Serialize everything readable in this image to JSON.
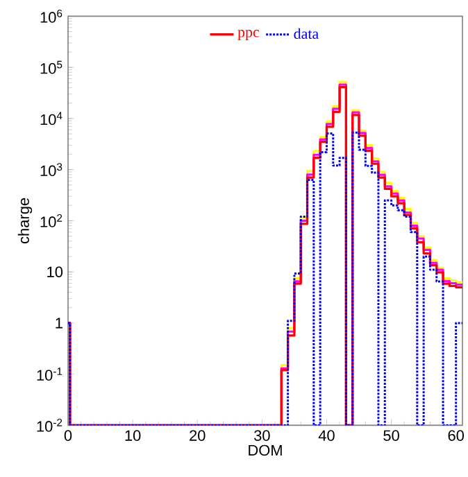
{
  "chart_data": {
    "type": "histogram",
    "xlabel": "DOM",
    "ylabel": "charge",
    "log": "y",
    "legend": "top",
    "grid": false,
    "xlim": [
      0,
      61
    ],
    "ylim": [
      0.01,
      1000000
    ],
    "xticks": [
      0,
      10,
      20,
      30,
      40,
      50,
      60
    ],
    "yticks": [
      {
        "value": 0.01,
        "label": "10$^{-2}$"
      },
      {
        "value": 0.1,
        "label": "10$^{-1}$"
      },
      1,
      10,
      {
        "value": 100,
        "label": "10$^{2}$"
      },
      {
        "value": 1000,
        "label": "10$^{3}$"
      },
      {
        "value": 10000,
        "label": "10$^{4}$"
      },
      {
        "value": 100000,
        "label": "10$^{5}$"
      },
      {
        "value": 1000000,
        "label": "10$^{6}$"
      }
    ],
    "bins": [
      0,
      0.3,
      1,
      2,
      3,
      4,
      5,
      6,
      7,
      8,
      9,
      10,
      11,
      12,
      13,
      14,
      15,
      16,
      17,
      18,
      19,
      20,
      21,
      22,
      23,
      24,
      25,
      26,
      27,
      28,
      29,
      30,
      31,
      32,
      33,
      34,
      35,
      36,
      37,
      38,
      39,
      40,
      41,
      42,
      43,
      44,
      45,
      46,
      47,
      48,
      49,
      50,
      51,
      52,
      53,
      54,
      55,
      56,
      57,
      58,
      59,
      60,
      61
    ],
    "series": [
      {
        "color": "#ffff00",
        "line_style": "solid",
        "values": [
          1,
          0.01,
          0.01,
          0.01,
          0.01,
          0.01,
          0.01,
          0.01,
          0.01,
          0.01,
          0.01,
          0.01,
          0.01,
          0.01,
          0.01,
          0.01,
          0.01,
          0.01,
          0.01,
          0.01,
          0.01,
          0.01,
          0.01,
          0.01,
          0.01,
          0.01,
          0.01,
          0.01,
          0.01,
          0.01,
          0.01,
          0.01,
          0.01,
          0.01,
          0.15,
          0.8,
          7.5,
          115,
          950,
          2300,
          4300,
          8800,
          17500,
          52000,
          0.01,
          14500,
          5800,
          3000,
          1650,
          900,
          550,
          380,
          280,
          170,
          90,
          50,
          30,
          17,
          12,
          7.5,
          6.8,
          6.3
        ]
      },
      {
        "color": "#ff00ff",
        "line_style": "solid",
        "values": [
          1,
          0.01,
          0.01,
          0.01,
          0.01,
          0.01,
          0.01,
          0.01,
          0.01,
          0.01,
          0.01,
          0.01,
          0.01,
          0.01,
          0.01,
          0.01,
          0.01,
          0.01,
          0.01,
          0.01,
          0.01,
          0.01,
          0.01,
          0.01,
          0.01,
          0.01,
          0.01,
          0.01,
          0.01,
          0.01,
          0.01,
          0.01,
          0.01,
          0.01,
          0.13,
          0.68,
          6.5,
          100,
          800,
          1950,
          3900,
          7800,
          15500,
          46000,
          0.01,
          13200,
          5200,
          2650,
          1450,
          790,
          470,
          340,
          250,
          145,
          80,
          45,
          27,
          15,
          11,
          6.6,
          6.0,
          5.6
        ]
      },
      {
        "name": "ppc",
        "color": "#ff0000",
        "line_style": "solid",
        "values": [
          1,
          0.01,
          0.01,
          0.01,
          0.01,
          0.01,
          0.01,
          0.01,
          0.01,
          0.01,
          0.01,
          0.01,
          0.01,
          0.01,
          0.01,
          0.01,
          0.01,
          0.01,
          0.01,
          0.01,
          0.01,
          0.01,
          0.01,
          0.01,
          0.01,
          0.01,
          0.01,
          0.01,
          0.01,
          0.01,
          0.01,
          0.01,
          0.01,
          0.01,
          0.12,
          0.57,
          5.9,
          87,
          700,
          1700,
          3500,
          6900,
          13500,
          41000,
          0.01,
          11700,
          4600,
          2350,
          1300,
          700,
          420,
          300,
          220,
          130,
          71,
          38,
          23,
          13.5,
          9.8,
          5.9,
          5.3,
          5
        ]
      },
      {
        "name": "data",
        "color": "#0000ff",
        "line_style": "dotted",
        "values": [
          1,
          0.01,
          0.01,
          0.01,
          0.01,
          0.01,
          0.01,
          0.01,
          0.01,
          0.01,
          0.01,
          0.01,
          0.01,
          0.01,
          0.01,
          0.01,
          0.01,
          0.01,
          0.01,
          0.01,
          0.01,
          0.01,
          0.01,
          0.01,
          0.01,
          0.01,
          0.01,
          0.01,
          0.01,
          0.01,
          0.01,
          0.01,
          0.01,
          0.01,
          0.01,
          1.1,
          9.3,
          120,
          630,
          0.01,
          2200,
          5100,
          1200,
          1700,
          0.01,
          5300,
          2450,
          1180,
          870,
          0.01,
          250,
          200,
          160,
          120,
          60,
          0.01,
          20,
          11,
          6.5,
          0.01,
          0.01,
          1
        ]
      }
    ]
  }
}
